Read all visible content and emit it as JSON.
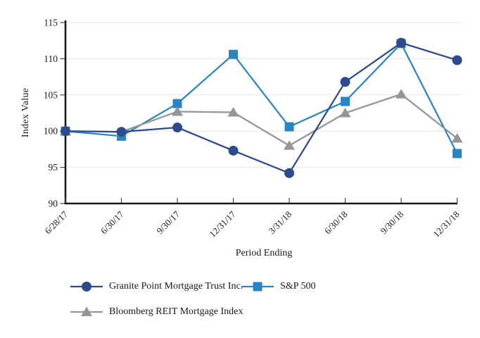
{
  "chart_data": {
    "type": "line",
    "title": "",
    "xlabel": "Period Ending",
    "ylabel": "Index Value",
    "categories": [
      "6/28/17",
      "6/30/17",
      "9/30/17",
      "12/31/17",
      "3/31/18",
      "6/30/18",
      "9/30/18",
      "12/31/18"
    ],
    "ylim": [
      90,
      115
    ],
    "yticks": [
      90,
      95,
      100,
      105,
      110,
      115
    ],
    "grid": "horizontal-light",
    "legend_position": "bottom",
    "series": [
      {
        "name": "Granite Point Mortgage Trust Inc.",
        "marker": "circle",
        "color": "#2c4a8c",
        "z": 3,
        "values": [
          100.0,
          99.9,
          100.5,
          97.3,
          94.2,
          106.8,
          112.2,
          109.8
        ]
      },
      {
        "name": "S&P 500",
        "marker": "square",
        "color": "#2a85c5",
        "z": 1,
        "values": [
          100.0,
          99.3,
          103.8,
          110.6,
          100.6,
          104.1,
          112.1,
          96.9
        ]
      },
      {
        "name": "Bloomberg REIT Mortgage Index",
        "marker": "triangle",
        "color": "#959595",
        "z": 2,
        "values": [
          100.0,
          99.9,
          102.7,
          102.6,
          98.0,
          102.5,
          105.1,
          99.0
        ]
      }
    ],
    "colors": {
      "axis": "#1a1a1a",
      "tick": "#444444",
      "gridline": "#e6e6e6",
      "text": "#1a1a1a"
    }
  }
}
